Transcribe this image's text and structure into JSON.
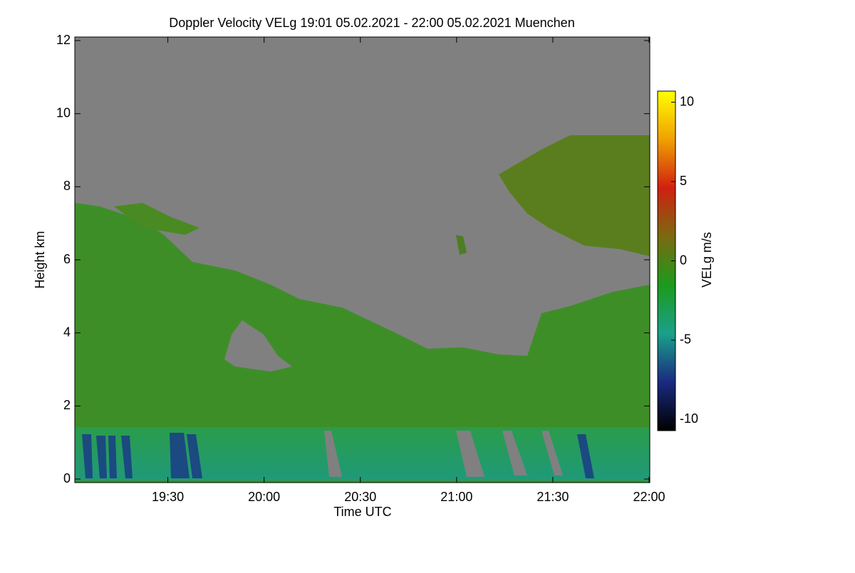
{
  "chart_data": {
    "type": "heatmap",
    "title": "Doppler Velocity VELg   19:01 05.02.2021 - 22:00 05.02.2021 Muenchen",
    "x_label": "Time UTC",
    "y_label": "Height km",
    "xlim": [
      1141,
      1320
    ],
    "xticks": [
      {
        "value": 1170,
        "label": "19:30"
      },
      {
        "value": 1200,
        "label": "20:00"
      },
      {
        "value": 1230,
        "label": "20:30"
      },
      {
        "value": 1260,
        "label": "21:00"
      },
      {
        "value": 1290,
        "label": "21:30"
      },
      {
        "value": 1320,
        "label": "22:00"
      }
    ],
    "ylim": [
      0,
      12
    ],
    "yticks": [
      0,
      2,
      4,
      6,
      8,
      10,
      12
    ],
    "colorbar": {
      "label": "VELg m/s",
      "lim": [
        -10.7,
        10.7
      ],
      "ticks": [
        -10,
        -5,
        0,
        5,
        10
      ],
      "colors": [
        "#000000",
        "#1a2a80",
        "#1aa08a",
        "#1c9a1c",
        "#7a6a10",
        "#d02010",
        "#f0a000",
        "#ffff00"
      ]
    }
  }
}
